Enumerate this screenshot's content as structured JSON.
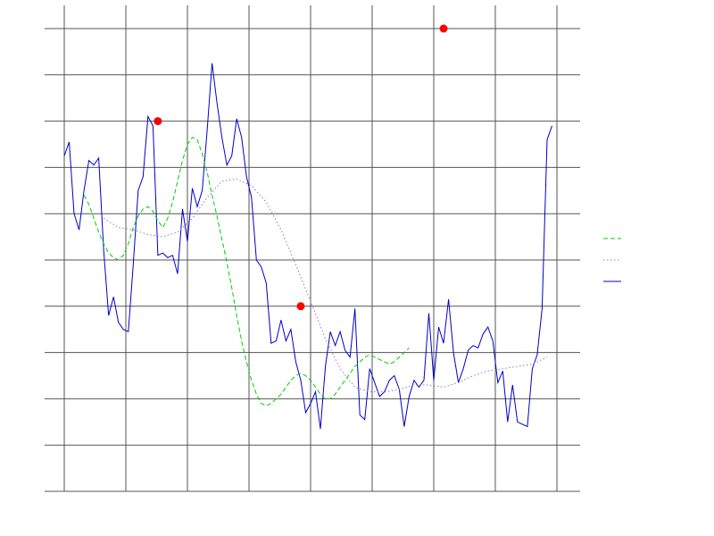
{
  "chart_data": {
    "type": "line",
    "title": "",
    "xlabel": "",
    "ylabel": "",
    "xlim": [
      0,
      105
    ],
    "ylim": [
      -10,
      0
    ],
    "grid": true,
    "legend_position": "right",
    "colors": {
      "raw": "#0000cc",
      "ma_dashed": "#00cc00",
      "ma_dotted": "#a070c0",
      "markers": "#ff0000",
      "grid": "#555555"
    },
    "series": [
      {
        "style": "solid",
        "color": "#0000cc",
        "values": [
          -2.75,
          -2.45,
          -4.0,
          -4.35,
          -3.5,
          -2.85,
          -2.95,
          -2.8,
          -4.8,
          -6.2,
          -5.8,
          -6.35,
          -6.5,
          -6.55,
          -5.1,
          -3.5,
          -3.2,
          -1.9,
          -2.1,
          -4.9,
          -4.85,
          -4.95,
          -4.9,
          -5.3,
          -3.9,
          -4.6,
          -3.45,
          -3.85,
          -3.5,
          -2.2,
          -0.75,
          -1.6,
          -2.35,
          -2.95,
          -2.75,
          -1.95,
          -2.35,
          -3.2,
          -3.65,
          -5.0,
          -5.15,
          -5.5,
          -6.8,
          -6.75,
          -6.3,
          -6.75,
          -6.5,
          -7.2,
          -7.6,
          -8.3,
          -8.1,
          -7.85,
          -8.65,
          -7.3,
          -6.55,
          -6.85,
          -6.55,
          -6.95,
          -7.1,
          -6.05,
          -8.35,
          -8.45,
          -7.35,
          -7.65,
          -7.95,
          -7.85,
          -7.6,
          -7.5,
          -7.8,
          -8.6,
          -7.95,
          -7.6,
          -7.75,
          -7.6,
          -6.15,
          -7.6,
          -6.45,
          -6.8,
          -5.85,
          -7.0,
          -7.65,
          -7.35,
          -6.95,
          -6.85,
          -6.9,
          -6.6,
          -6.45,
          -6.75,
          -7.65,
          -7.4,
          -8.5,
          -7.7,
          -8.5,
          -8.55,
          -8.6,
          -7.35,
          -7.05,
          -6.05,
          -2.4,
          -2.1
        ]
      },
      {
        "style": "dashed",
        "color": "#00cc00",
        "values": [
          -3.6,
          -3.8,
          -4.1,
          -4.4,
          -4.65,
          -4.85,
          -4.95,
          -5.0,
          -4.9,
          -4.65,
          -4.3,
          -4.05,
          -3.9,
          -3.85,
          -3.95,
          -4.15,
          -4.3,
          -4.1,
          -3.75,
          -3.3,
          -2.85,
          -2.5,
          -2.35,
          -2.4,
          -2.7,
          -3.1,
          -3.6,
          -4.05,
          -4.55,
          -5.05,
          -5.6,
          -6.2,
          -6.75,
          -7.2,
          -7.6,
          -7.9,
          -8.1,
          -8.15,
          -8.1,
          -8.0,
          -7.9,
          -7.75,
          -7.6,
          -7.5,
          -7.45,
          -7.5,
          -7.6,
          -7.75,
          -7.9,
          -8.0,
          -8.0,
          -7.9,
          -7.75,
          -7.6,
          -7.45,
          -7.3,
          -7.2,
          -7.1,
          -7.05,
          -7.1,
          -7.15,
          -7.2,
          -7.25,
          -7.2,
          -7.1,
          -7.0,
          -6.9
        ],
        "x_start": 4
      },
      {
        "style": "dotted",
        "color": "#a070c0",
        "values": [
          -4.1,
          -4.3,
          -4.35,
          -4.45,
          -4.5,
          -4.4,
          -4.1,
          -3.65,
          -3.3,
          -3.25,
          -3.4,
          -3.75,
          -4.35,
          -5.1,
          -5.9,
          -6.7,
          -7.35,
          -7.75,
          -7.85,
          -7.85,
          -7.8,
          -7.7,
          -7.7,
          -7.75,
          -7.65,
          -7.5,
          -7.4,
          -7.35,
          -7.3,
          -7.25,
          -7.1
        ],
        "x_start": 8,
        "x_step": 3.0
      }
    ],
    "markers": [
      {
        "x": 19,
        "y": -2.0
      },
      {
        "x": 48,
        "y": -6.0
      },
      {
        "x": 77,
        "y": 0.0
      }
    ],
    "legend": [
      {
        "style": "dashed",
        "color": "#00cc00"
      },
      {
        "style": "dotted",
        "color": "#a070c0"
      },
      {
        "style": "solid",
        "color": "#0000cc"
      }
    ]
  }
}
